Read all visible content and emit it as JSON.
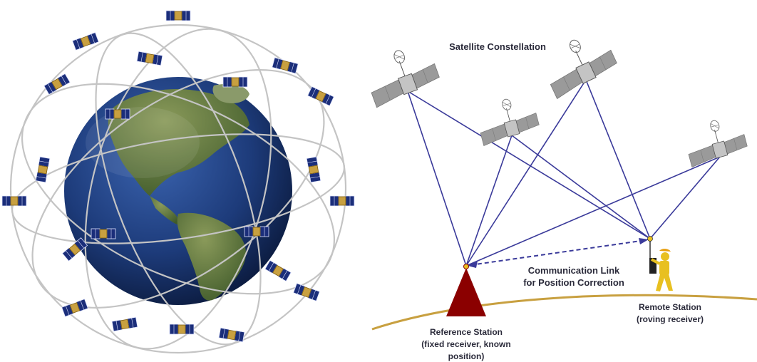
{
  "left_figure": {
    "description_icons": [
      "globe-icon",
      "satellite-icon",
      "orbit-ring"
    ]
  },
  "right_figure": {
    "title": "Satellite Constellation",
    "link_label_line1": "Communication Link",
    "link_label_line2": "for Position Correction",
    "reference_label_line1": "Reference Station",
    "reference_label_line2": "(fixed receiver, known",
    "reference_label_line3": "position)",
    "remote_label_line1": "Remote Station",
    "remote_label_line2": "(roving receiver)"
  },
  "colors": {
    "signal_line": "#3a3a9a",
    "reference_triangle": "#8b0000",
    "ground": "#c8a040",
    "globe_ocean": "#1d3b7a",
    "globe_land": "#5d7a3c",
    "orbit": "#bdbdbd",
    "satellite_panel": "#9a9a9a",
    "surveyor": "#e8c020"
  }
}
